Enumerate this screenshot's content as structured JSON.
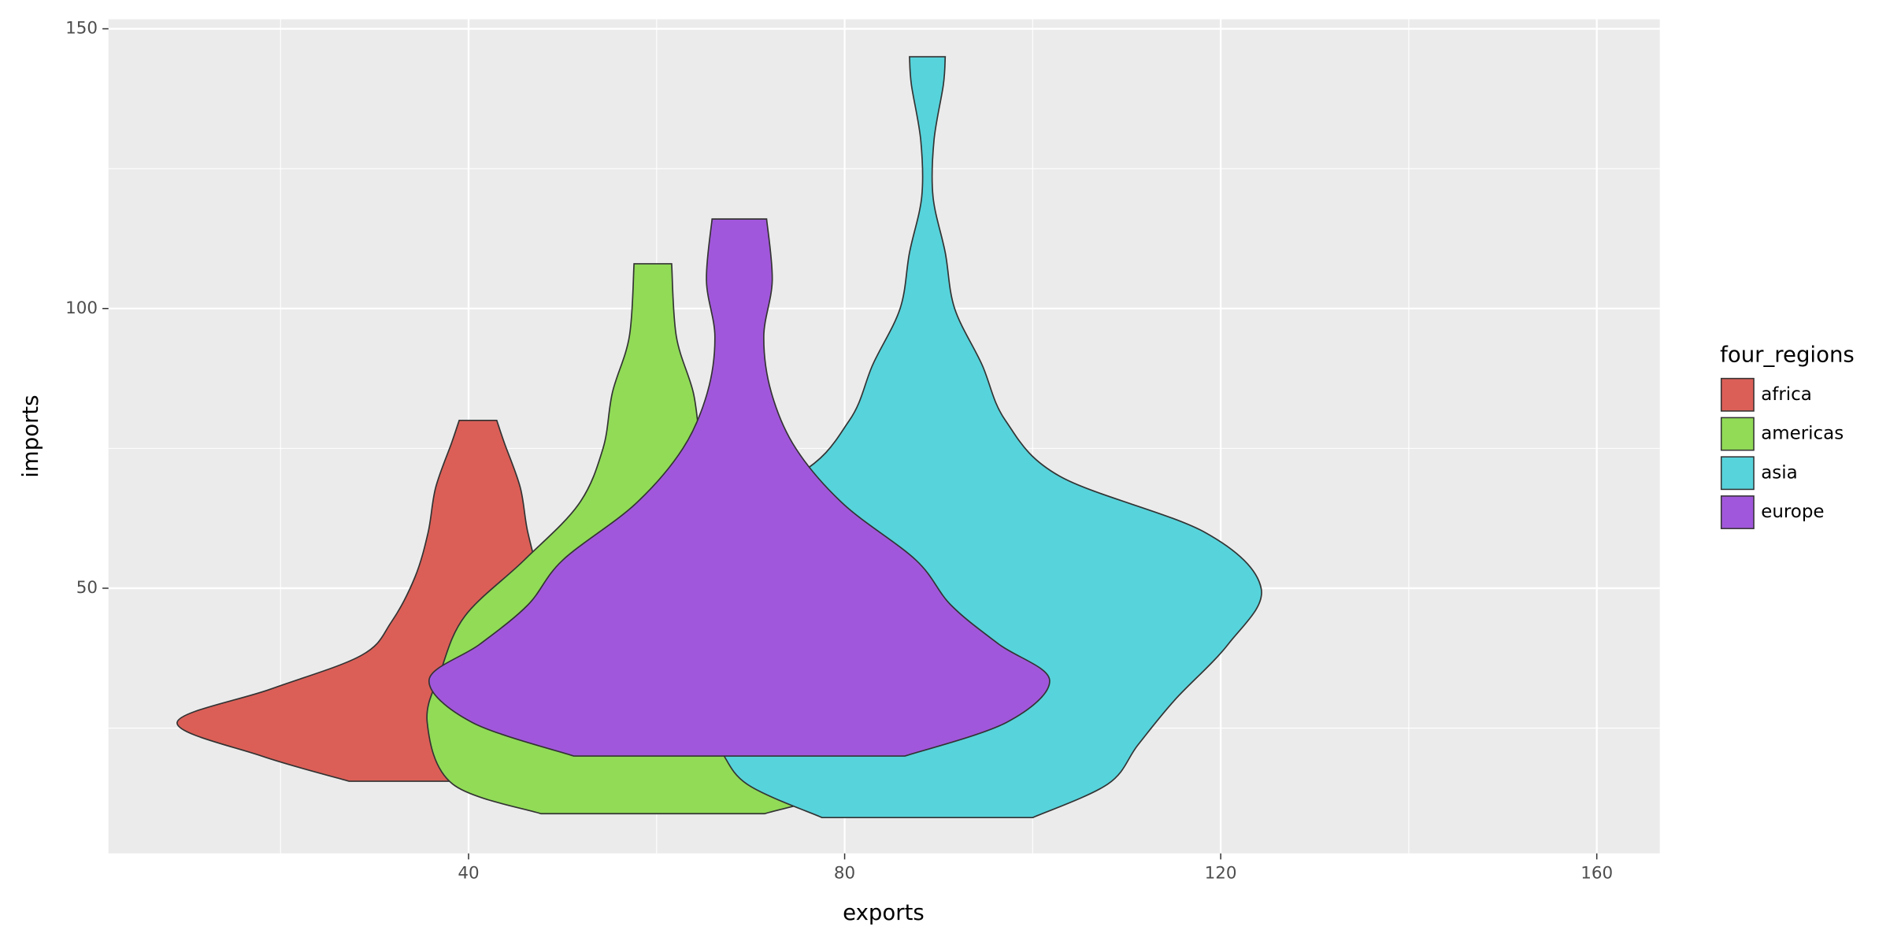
{
  "chart_data": {
    "type": "violin",
    "x_label": "exports",
    "y_label": "imports",
    "legend_title": "four_regions",
    "legend_position": "right",
    "xlim": [
      1.7,
      166.7
    ],
    "ylim": [
      2.6,
      151.7
    ],
    "xticks": [
      40,
      80,
      120,
      160
    ],
    "yticks": [
      50,
      100,
      150
    ],
    "x_minor_grid": [
      20,
      60,
      100,
      140
    ],
    "y_minor_grid": [
      25,
      75,
      125
    ],
    "grid": true,
    "series": [
      {
        "name": "africa",
        "color": "#db5f57",
        "x": 41,
        "y": [
          15.5,
          20,
          26,
          32,
          38,
          44,
          52,
          60,
          68,
          76,
          80
        ],
        "half_width": [
          13.7,
          23,
          32,
          22,
          12.4,
          9.2,
          6.7,
          5.3,
          4.5,
          2.8,
          2
        ]
      },
      {
        "name": "americas",
        "color": "#91db57",
        "x": 59.6,
        "y": [
          9.7,
          15,
          26,
          35,
          45,
          55,
          65,
          75,
          85,
          95,
          108
        ],
        "half_width": [
          11.9,
          21.3,
          24,
          22.6,
          20,
          13.7,
          7.9,
          5.3,
          4.3,
          2.5,
          2
        ]
      },
      {
        "name": "asia",
        "color": "#57d3db",
        "x": 88.8,
        "y": [
          9,
          15,
          22,
          30,
          40,
          50,
          60,
          70,
          80,
          90,
          100,
          110,
          120,
          130,
          140,
          145
        ],
        "half_width": [
          11.2,
          19.2,
          22.4,
          26.3,
          32,
          35.5,
          29.5,
          14.1,
          8.3,
          5.8,
          2.9,
          1.9,
          0.6,
          0.7,
          1.7,
          1.9
        ]
      },
      {
        "name": "europe",
        "color": "#a157db",
        "x": 68.8,
        "y": [
          20,
          26,
          33.6,
          40,
          47,
          55,
          65,
          75,
          85,
          95,
          105,
          116
        ],
        "half_width": [
          17.6,
          28.4,
          33,
          27.6,
          22.5,
          18.8,
          11.1,
          6,
          3.4,
          2.6,
          3.5,
          2.9
        ]
      }
    ]
  }
}
